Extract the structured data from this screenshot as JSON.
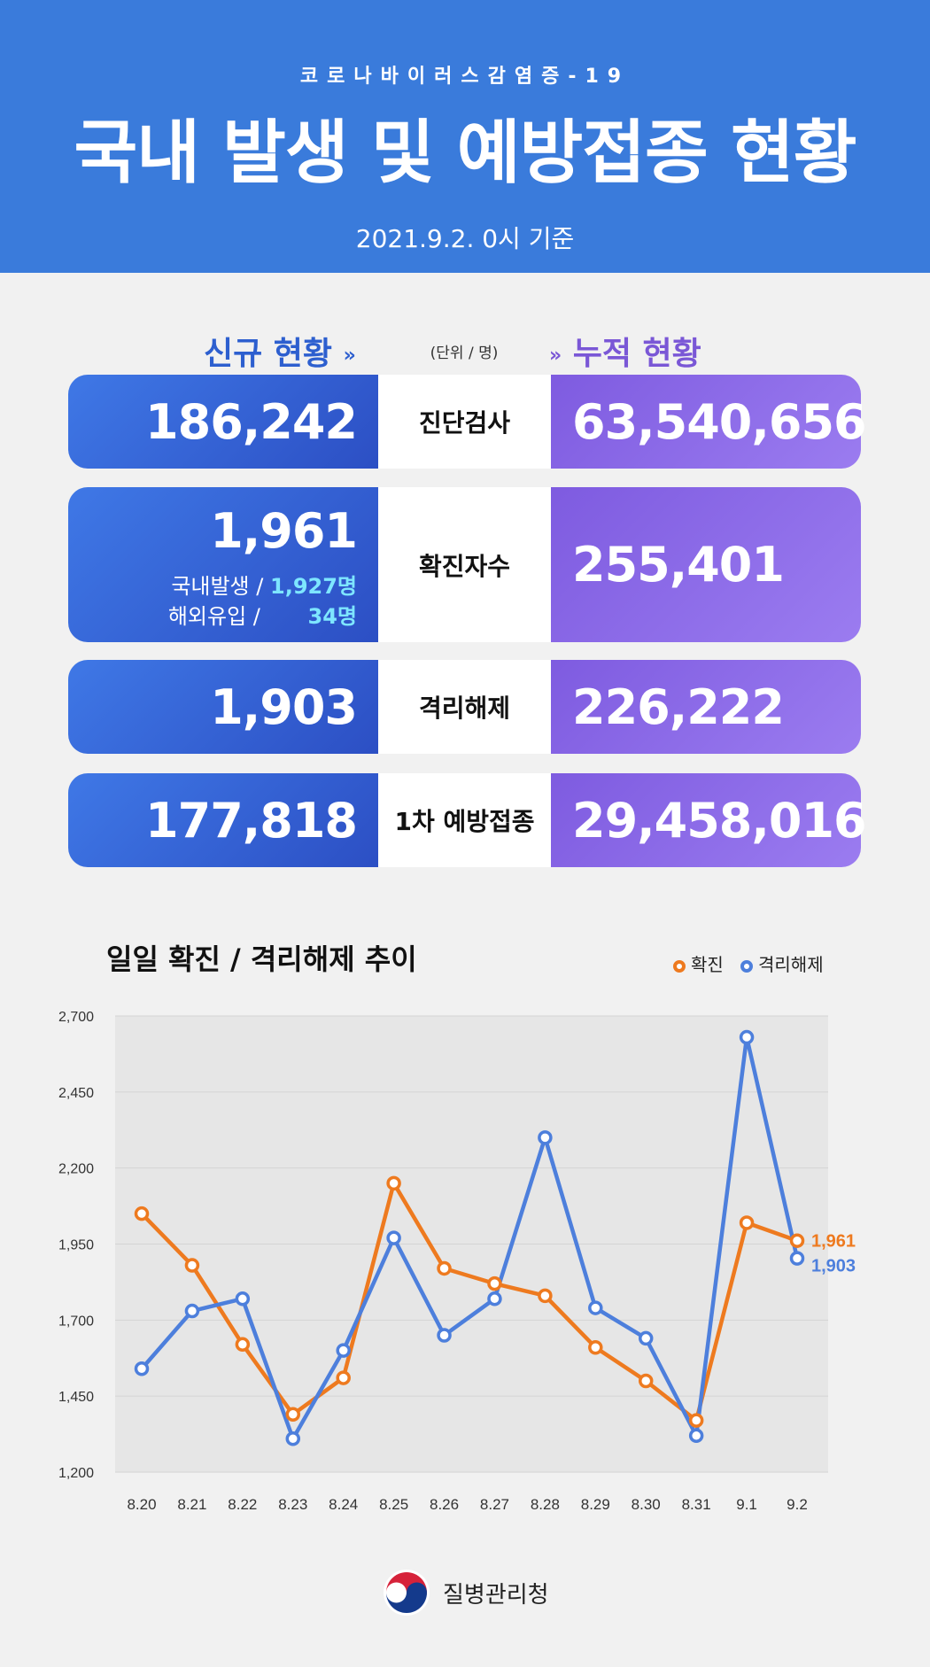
{
  "header": {
    "subtitle": "코로나바이러스감염증-19",
    "title": "국내 발생 및 예방접종 현황",
    "date": "2021.9.2. 0시 기준"
  },
  "sections": {
    "new_label": "신규 현황",
    "cumulative_label": "누적 현황",
    "unit": "(단위 / 명)"
  },
  "rows": [
    {
      "label": "진단검사",
      "new": "186,242",
      "cumulative": "63,540,656"
    },
    {
      "label": "확진자수",
      "new": "1,961",
      "cumulative": "255,401",
      "breakdown": [
        {
          "label": "국내발생 /",
          "value": "1,927명"
        },
        {
          "label": "해외유입 /",
          "value": "34명"
        }
      ]
    },
    {
      "label": "격리해제",
      "new": "1,903",
      "cumulative": "226,222"
    },
    {
      "label": "1차 예방접종",
      "new": "177,818",
      "cumulative": "29,458,016"
    }
  ],
  "chart_title": "일일 확진 / 격리해제 추이",
  "colors": {
    "confirmed": "#ee7a1f",
    "released": "#4d7fdc",
    "header": "#3a7bdb"
  },
  "chart_data": {
    "type": "line",
    "title": "일일 확진 / 격리해제 추이",
    "categories": [
      "8.20",
      "8.21",
      "8.22",
      "8.23",
      "8.24",
      "8.25",
      "8.26",
      "8.27",
      "8.28",
      "8.29",
      "8.30",
      "8.31",
      "9.1",
      "9.2"
    ],
    "ylim": [
      1200,
      2700
    ],
    "yticks": [
      "1,200",
      "1,450",
      "1,700",
      "1,950",
      "2,200",
      "2,450",
      "2,700"
    ],
    "grid": true,
    "legend": "top-right",
    "series": [
      {
        "name": "확진",
        "values": [
          2050,
          1880,
          1620,
          1390,
          1510,
          2150,
          1870,
          1820,
          1780,
          1610,
          1500,
          1370,
          2020,
          1961
        ],
        "end_label": "1,961"
      },
      {
        "name": "격리해제",
        "values": [
          1540,
          1730,
          1770,
          1310,
          1600,
          1970,
          1650,
          1770,
          2300,
          1740,
          1640,
          1320,
          2630,
          1903
        ],
        "end_label": "1,903"
      }
    ]
  },
  "footer": {
    "agency": "질병관리청"
  }
}
